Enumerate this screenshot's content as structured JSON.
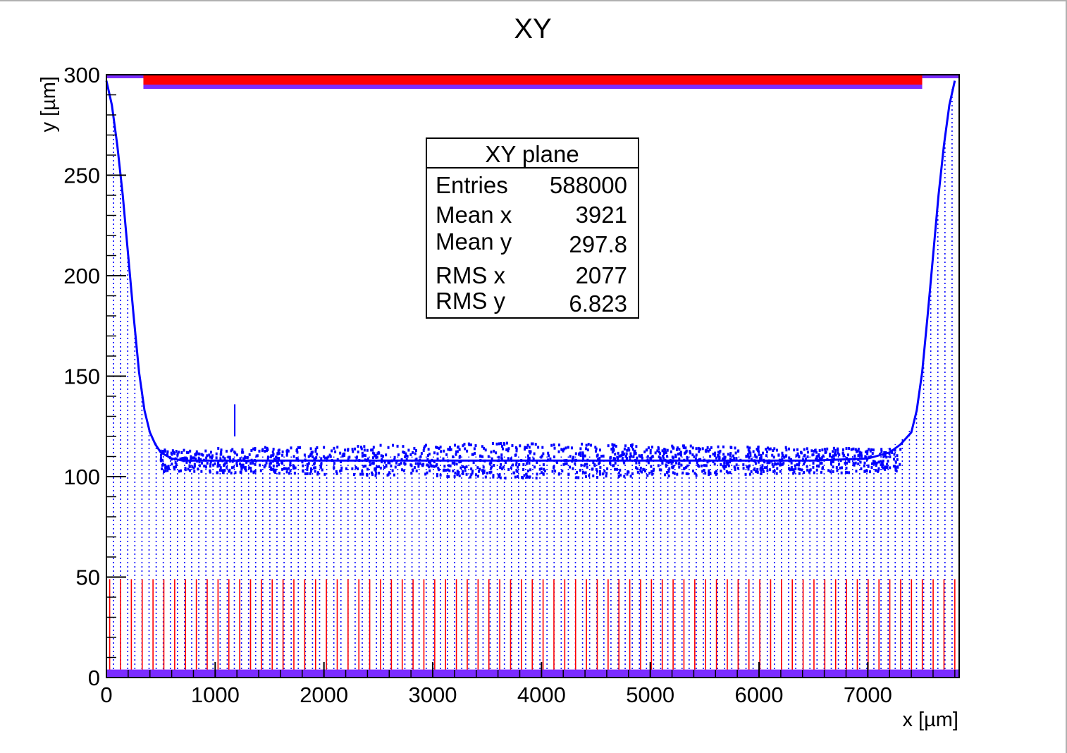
{
  "chart_data": {
    "type": "scatter",
    "title": "XY",
    "xlabel": "x [µm]",
    "ylabel": "y [µm]",
    "xlim": [
      0,
      7840
    ],
    "ylim": [
      0,
      300
    ],
    "x_ticks": [
      "0",
      "1000",
      "2000",
      "3000",
      "4000",
      "5000",
      "6000",
      "7000"
    ],
    "y_ticks": [
      "0",
      "50",
      "100",
      "150",
      "200",
      "250",
      "300"
    ],
    "grid": false,
    "colors": {
      "drift_points": "#0000ff",
      "electrode_lines": "#ff0000",
      "plane_bars": "#7b2cff",
      "top_electrode": "#ff0000"
    },
    "series": [
      {
        "values": [
          [
            0,
            297
          ],
          [
            50,
            285
          ],
          [
            100,
            265
          ],
          [
            150,
            240
          ],
          [
            200,
            210
          ],
          [
            250,
            180
          ],
          [
            300,
            152
          ],
          [
            350,
            133
          ],
          [
            400,
            122
          ],
          [
            450,
            116
          ],
          [
            500,
            112
          ],
          [
            600,
            109
          ],
          [
            700,
            108
          ],
          [
            1000,
            108
          ],
          [
            1500,
            108
          ],
          [
            2000,
            108
          ],
          [
            2500,
            108
          ],
          [
            3000,
            108
          ],
          [
            3500,
            108
          ],
          [
            4000,
            108
          ],
          [
            4500,
            108
          ],
          [
            5000,
            108
          ],
          [
            5500,
            108
          ],
          [
            6000,
            108
          ],
          [
            6500,
            108
          ],
          [
            7000,
            109
          ],
          [
            7200,
            112
          ],
          [
            7300,
            116
          ],
          [
            7400,
            122
          ],
          [
            7450,
            133
          ],
          [
            7500,
            152
          ],
          [
            7550,
            180
          ],
          [
            7600,
            210
          ],
          [
            7650,
            240
          ],
          [
            7700,
            265
          ],
          [
            7750,
            285
          ],
          [
            7800,
            297
          ]
        ]
      }
    ],
    "electrode_strips": {
      "count": 79,
      "x_start": 30,
      "x_end": 7800,
      "y_top": 49
    },
    "top_electrode": {
      "x_start": 340,
      "x_end": 7500,
      "y": 297
    },
    "stats_box": {
      "title": "XY plane",
      "rows": [
        {
          "label": "Entries",
          "value": "588000"
        },
        {
          "label": "Mean x",
          "value": "3921"
        },
        {
          "label": "Mean y",
          "value": "297.8"
        },
        {
          "label": "RMS x",
          "value": "2077"
        },
        {
          "label": "RMS y",
          "value": "6.823"
        }
      ]
    }
  }
}
